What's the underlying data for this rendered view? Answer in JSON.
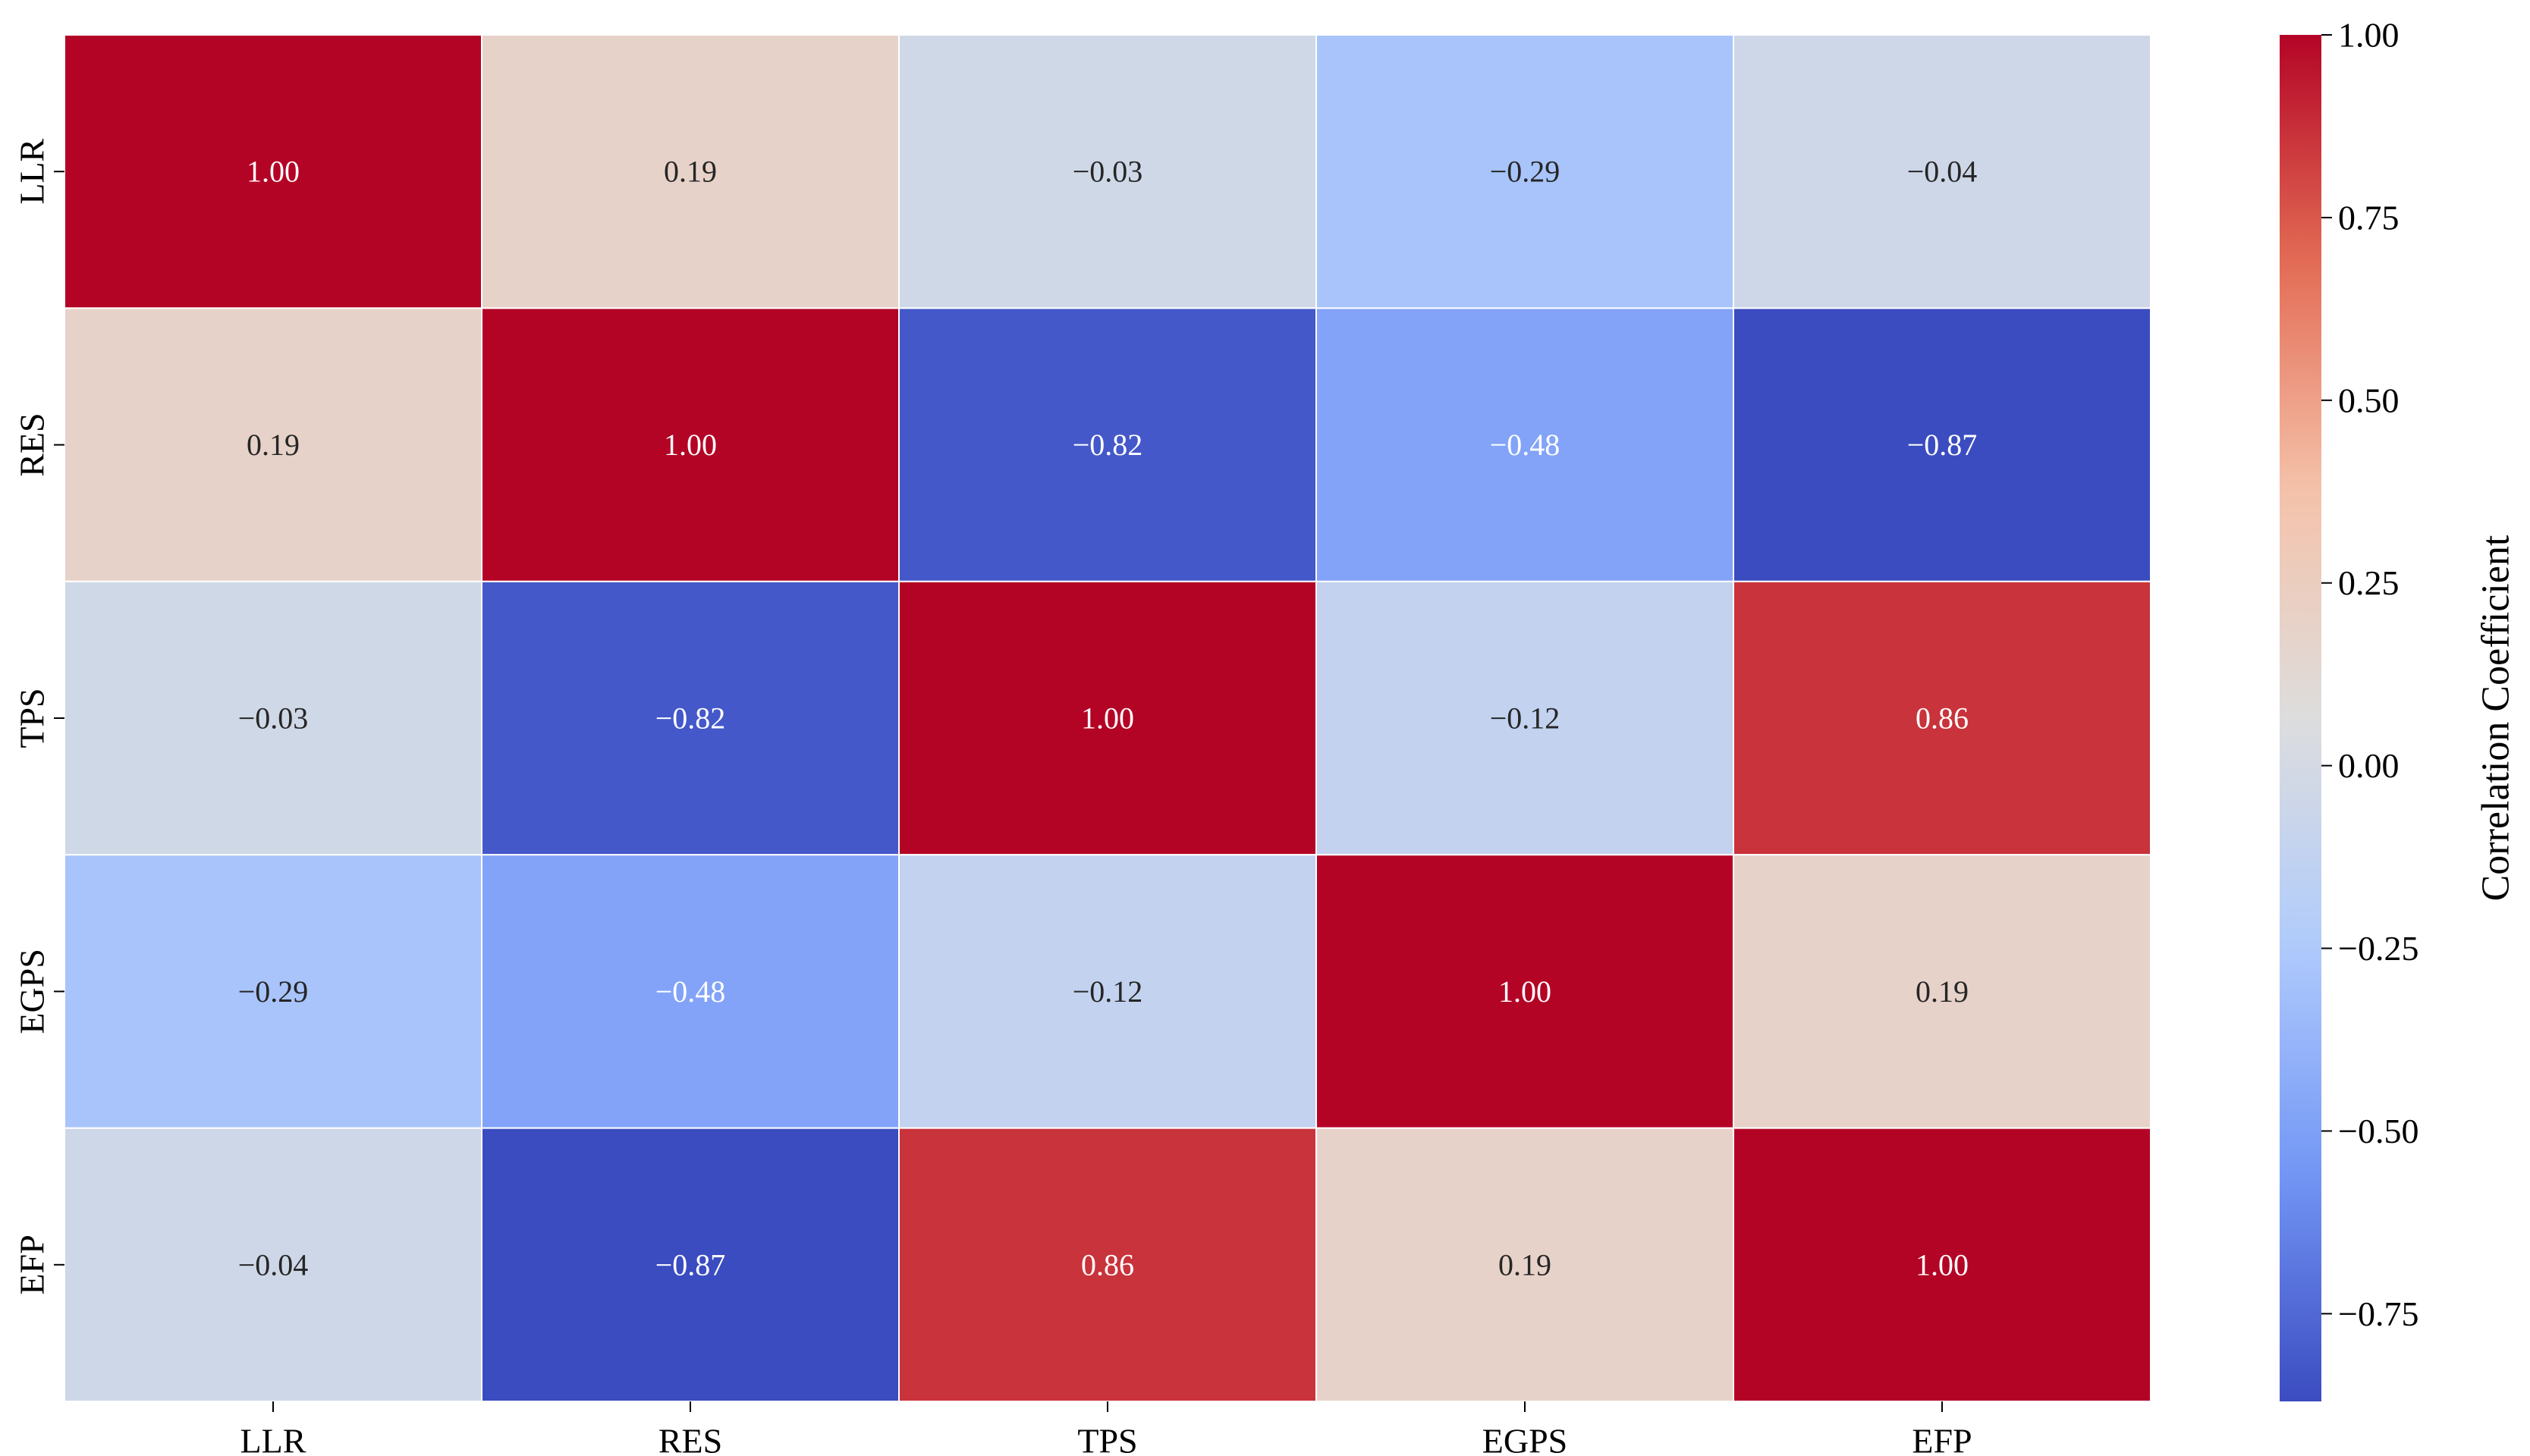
{
  "chart_data": {
    "type": "heatmap",
    "title": "",
    "xlabel": "",
    "ylabel": "",
    "rows": [
      "LLR",
      "RES",
      "TPS",
      "EGPS",
      "EFP"
    ],
    "columns": [
      "LLR",
      "RES",
      "TPS",
      "EGPS",
      "EFP"
    ],
    "values": [
      [
        1.0,
        0.19,
        -0.03,
        -0.29,
        -0.04
      ],
      [
        0.19,
        1.0,
        -0.82,
        -0.48,
        -0.87
      ],
      [
        -0.03,
        -0.82,
        1.0,
        -0.12,
        0.86
      ],
      [
        -0.29,
        -0.48,
        -0.12,
        1.0,
        0.19
      ],
      [
        -0.04,
        -0.87,
        0.86,
        0.19,
        1.0
      ]
    ],
    "value_format": "2 decimals",
    "colormap": "coolwarm",
    "colormap_stops": [
      "#3b4cc0",
      "#7396f5",
      "#b0cbfc",
      "#dddddd",
      "#f5c2aa",
      "#e36c55",
      "#b40426"
    ],
    "colorbar": {
      "label": "Correlation Coefficient",
      "vmin": -0.87,
      "vmax": 1.0,
      "ticks": [
        1.0,
        0.75,
        0.5,
        0.25,
        0.0,
        -0.25,
        -0.5,
        -0.75
      ],
      "tick_labels": [
        "1.00",
        "0.75",
        "0.50",
        "0.25",
        "0.00",
        "−0.25",
        "−0.50",
        "−0.75"
      ],
      "position": "right"
    },
    "grid_lines_color": "#ffffff"
  }
}
